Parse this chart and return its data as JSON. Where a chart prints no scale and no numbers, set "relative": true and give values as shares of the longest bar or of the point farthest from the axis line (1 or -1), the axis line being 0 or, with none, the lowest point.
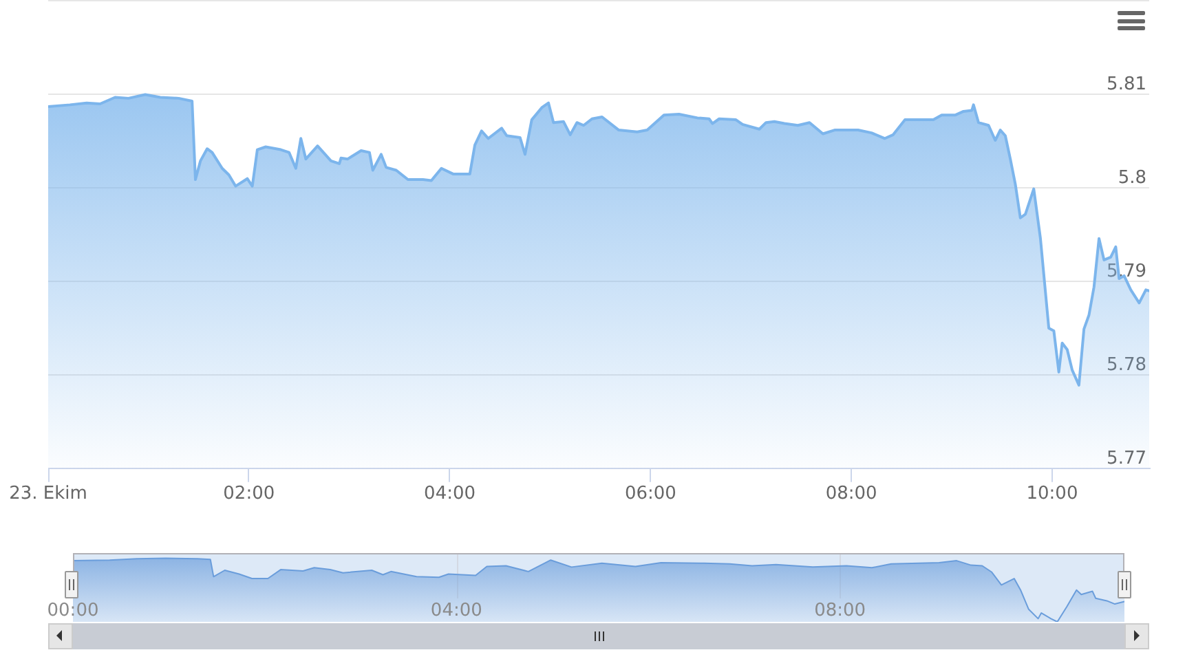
{
  "chart_data": [
    {
      "type": "area",
      "x": [
        "--10-23T00:00",
        "--10-23T00:13",
        "--10-23T00:23",
        "--10-23T00:31",
        "--10-23T00:40",
        "--10-23T00:48",
        "--10-23T00:58",
        "--10-23T01:07",
        "--10-23T01:18",
        "--10-23T01:26",
        "--10-23T01:28",
        "--10-23T01:31",
        "--10-23T01:35",
        "--10-23T01:38",
        "--10-23T01:44",
        "--10-23T01:48",
        "--10-23T01:52",
        "--10-23T01:59",
        "--10-23T02:02",
        "--10-23T02:05",
        "--10-23T02:10",
        "--10-23T02:19",
        "--10-23T02:24",
        "--10-23T02:28",
        "--10-23T02:31",
        "--10-23T02:34",
        "--10-23T02:41",
        "--10-23T02:49",
        "--10-23T02:54",
        "--10-23T02:55",
        "--10-23T02:59",
        "--10-23T03:07",
        "--10-23T03:12",
        "--10-23T03:14",
        "--10-23T03:19",
        "--10-23T03:22",
        "--10-23T03:28",
        "--10-23T03:35",
        "--10-23T03:44",
        "--10-23T03:49",
        "--10-23T03:55",
        "--10-23T04:02",
        "--10-23T04:12",
        "--10-23T04:15",
        "--10-23T04:19",
        "--10-23T04:23",
        "--10-23T04:31",
        "--10-23T04:34",
        "--10-23T04:42",
        "--10-23T04:45",
        "--10-23T04:49",
        "--10-23T04:55",
        "--10-23T04:59",
        "--10-23T05:02",
        "--10-23T05:08",
        "--10-23T05:12",
        "--10-23T05:16",
        "--10-23T05:20",
        "--10-23T05:25",
        "--10-23T05:31",
        "--10-23T05:41",
        "--10-23T05:52",
        "--10-23T05:58",
        "--10-23T06:08",
        "--10-23T06:17",
        "--10-23T06:28",
        "--10-23T06:35",
        "--10-23T06:37",
        "--10-23T06:41",
        "--10-23T06:51",
        "--10-23T06:55",
        "--10-23T07:05",
        "--10-23T07:09",
        "--10-23T07:14",
        "--10-23T07:20",
        "--10-23T07:28",
        "--10-23T07:35",
        "--10-23T07:43",
        "--10-23T07:50",
        "--10-23T08:04",
        "--10-23T08:12",
        "--10-23T08:20",
        "--10-23T08:25",
        "--10-23T08:32",
        "--10-23T08:42",
        "--10-23T08:49",
        "--10-23T08:54",
        "--10-23T09:02",
        "--10-23T09:07",
        "--10-23T09:12",
        "--10-23T09:13",
        "--10-23T09:16",
        "--10-23T09:22",
        "--10-23T09:26",
        "--10-23T09:29",
        "--10-23T09:32",
        "--10-23T09:35",
        "--10-23T09:38",
        "--10-23T09:41",
        "--10-23T09:44",
        "--10-23T09:49",
        "--10-23T09:53",
        "--10-23T09:58",
        "--10-23T10:01",
        "--10-23T10:04",
        "--10-23T10:06",
        "--10-23T10:09",
        "--10-23T10:12",
        "--10-23T10:16",
        "--10-23T10:19",
        "--10-23T10:22",
        "--10-23T10:25",
        "--10-23T10:28",
        "--10-23T10:31",
        "--10-23T10:35",
        "--10-23T10:38",
        "--10-23T10:40",
        "--10-23T10:43",
        "--10-23T10:47",
        "--10-23T10:52",
        "--10-23T10:56",
        "--10-23T10:58"
      ],
      "values": [
        5.8087,
        5.8089,
        5.8091,
        5.809,
        5.8097,
        5.8096,
        5.81,
        5.8097,
        5.8096,
        5.8093,
        5.8009,
        5.8029,
        5.8042,
        5.8038,
        5.8021,
        5.8014,
        5.8002,
        5.801,
        5.8002,
        5.8041,
        5.8044,
        5.8041,
        5.8038,
        5.8021,
        5.8053,
        5.8031,
        5.8045,
        5.8029,
        5.8026,
        5.8032,
        5.8031,
        5.804,
        5.8038,
        5.8019,
        5.8036,
        5.8022,
        5.8019,
        5.8009,
        5.8009,
        5.8008,
        5.8021,
        5.8015,
        5.8015,
        5.8046,
        5.8061,
        5.8053,
        5.8064,
        5.8056,
        5.8054,
        5.8036,
        5.8073,
        5.8086,
        5.8091,
        5.807,
        5.8071,
        5.8057,
        5.807,
        5.8067,
        5.8074,
        5.8076,
        5.8062,
        5.806,
        5.8062,
        5.8078,
        5.8079,
        5.8075,
        5.8074,
        5.8069,
        5.8074,
        5.8073,
        5.8068,
        5.8063,
        5.807,
        5.8071,
        5.8069,
        5.8067,
        5.807,
        5.8058,
        5.8062,
        5.8062,
        5.8059,
        5.8053,
        5.8057,
        5.8073,
        5.8073,
        5.8073,
        5.8078,
        5.8078,
        5.8082,
        5.8083,
        5.8089,
        5.807,
        5.8067,
        5.8051,
        5.8062,
        5.8056,
        5.8031,
        5.8004,
        5.7968,
        5.7972,
        5.7999,
        5.7946,
        5.785,
        5.7847,
        5.7803,
        5.7834,
        5.7827,
        5.7805,
        5.7789,
        5.7849,
        5.7864,
        5.7894,
        5.7946,
        5.7923,
        5.7926,
        5.7937,
        5.7903,
        5.7906,
        5.7891,
        5.7877,
        5.7891,
        5.789
      ],
      "color": "#7cb5ec",
      "xlim": [
        "--10-23T00:00",
        "--10-23T10:58"
      ],
      "xticks": [
        {
          "value": "--10-23T00:00",
          "label": "23. Ekim"
        },
        {
          "value": "--10-23T02:00",
          "label": "02:00"
        },
        {
          "value": "--10-23T04:00",
          "label": "04:00"
        },
        {
          "value": "--10-23T06:00",
          "label": "06:00"
        },
        {
          "value": "--10-23T08:00",
          "label": "08:00"
        },
        {
          "value": "--10-23T10:00",
          "label": "10:00"
        }
      ],
      "ylim": [
        5.77,
        5.82
      ],
      "yticks": [
        5.77,
        5.78,
        5.79,
        5.8,
        5.81,
        {
          "value": 5.82,
          "label": null
        }
      ],
      "grid": "y"
    },
    {
      "type": "area",
      "relative": true,
      "x": [
        "--10-23T00:00",
        "--10-23T00:23",
        "--10-23T00:40",
        "--10-23T00:58",
        "--10-23T01:18",
        "--10-23T01:26",
        "--10-23T01:28",
        "--10-23T01:35",
        "--10-23T01:44",
        "--10-23T01:52",
        "--10-23T02:02",
        "--10-23T02:10",
        "--10-23T02:24",
        "--10-23T02:31",
        "--10-23T02:41",
        "--10-23T02:49",
        "--10-23T03:07",
        "--10-23T03:14",
        "--10-23T03:19",
        "--10-23T03:35",
        "--10-23T03:49",
        "--10-23T03:55",
        "--10-23T04:12",
        "--10-23T04:19",
        "--10-23T04:31",
        "--10-23T04:45",
        "--10-23T04:59",
        "--10-23T05:12",
        "--10-23T05:31",
        "--10-23T05:52",
        "--10-23T06:08",
        "--10-23T06:35",
        "--10-23T06:51",
        "--10-23T07:05",
        "--10-23T07:20",
        "--10-23T07:43",
        "--10-23T08:04",
        "--10-23T08:20",
        "--10-23T08:32",
        "--10-23T09:02",
        "--10-23T09:13",
        "--10-23T09:22",
        "--10-23T09:29",
        "--10-23T09:35",
        "--10-23T09:41",
        "--10-23T09:49",
        "--10-23T09:53",
        "--10-23T09:58",
        "--10-23T10:04",
        "--10-23T10:06",
        "--10-23T10:12",
        "--10-23T10:16",
        "--10-23T10:22",
        "--10-23T10:28",
        "--10-23T10:31",
        "--10-23T10:38",
        "--10-23T10:40",
        "--10-23T10:47",
        "--10-23T10:52",
        "--10-23T10:58"
      ],
      "values": [
        0.96,
        0.97,
        0.99,
        1,
        0.99,
        0.98,
        0.71,
        0.81,
        0.75,
        0.68,
        0.68,
        0.82,
        0.8,
        0.85,
        0.82,
        0.77,
        0.81,
        0.74,
        0.79,
        0.71,
        0.7,
        0.75,
        0.73,
        0.87,
        0.88,
        0.79,
        0.97,
        0.86,
        0.92,
        0.87,
        0.93,
        0.92,
        0.91,
        0.88,
        0.9,
        0.86,
        0.88,
        0.85,
        0.91,
        0.93,
        0.96,
        0.89,
        0.88,
        0.78,
        0.58,
        0.68,
        0.5,
        0.2,
        0.05,
        0.14,
        0.05,
        0,
        0.24,
        0.5,
        0.43,
        0.48,
        0.37,
        0.33,
        0.28,
        0.32
      ],
      "color": "#6a9ddb",
      "xlim": [
        "--10-23T00:00",
        "--10-23T10:58"
      ],
      "xticks": [
        {
          "value": "--10-23T00:00",
          "label": "00:00"
        },
        {
          "value": "--10-23T04:00",
          "label": "04:00"
        },
        {
          "value": "--10-23T08:00",
          "label": "08:00"
        }
      ],
      "grid": "x",
      "bands": [
        {
          "axis": "x",
          "from": "--10-23T00:00",
          "to": "--10-23T10:58",
          "color": "#dde9f7"
        }
      ]
    }
  ]
}
